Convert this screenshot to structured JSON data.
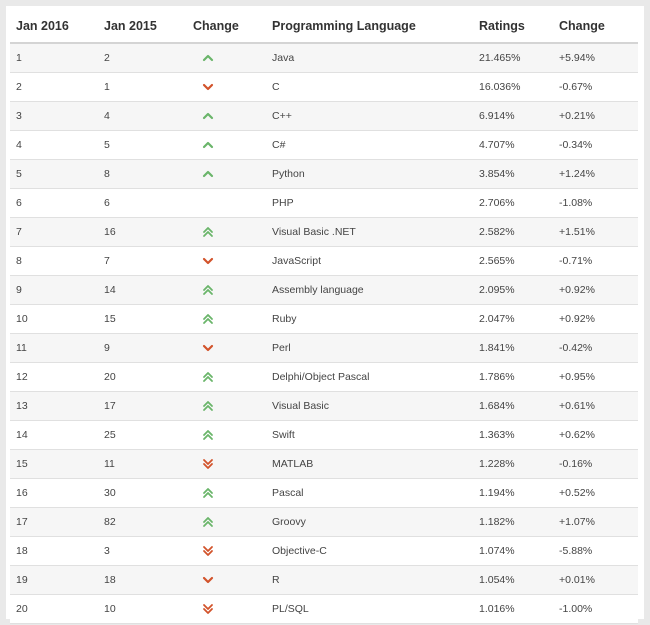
{
  "headers": [
    "Jan 2016",
    "Jan 2015",
    "Change",
    "Programming Language",
    "Ratings",
    "Change"
  ],
  "colors": {
    "up": "#6ab56a",
    "down": "#d2532b"
  },
  "rows": [
    {
      "jan2016": "1",
      "jan2015": "2",
      "trend": "up",
      "language": "Java",
      "rating": "21.465%",
      "change": "+5.94%"
    },
    {
      "jan2016": "2",
      "jan2015": "1",
      "trend": "down",
      "language": "C",
      "rating": "16.036%",
      "change": "-0.67%"
    },
    {
      "jan2016": "3",
      "jan2015": "4",
      "trend": "up",
      "language": "C++",
      "rating": "6.914%",
      "change": "+0.21%"
    },
    {
      "jan2016": "4",
      "jan2015": "5",
      "trend": "up",
      "language": "C#",
      "rating": "4.707%",
      "change": "-0.34%"
    },
    {
      "jan2016": "5",
      "jan2015": "8",
      "trend": "up",
      "language": "Python",
      "rating": "3.854%",
      "change": "+1.24%"
    },
    {
      "jan2016": "6",
      "jan2015": "6",
      "trend": "none",
      "language": "PHP",
      "rating": "2.706%",
      "change": "-1.08%"
    },
    {
      "jan2016": "7",
      "jan2015": "16",
      "trend": "double-up",
      "language": "Visual Basic .NET",
      "rating": "2.582%",
      "change": "+1.51%"
    },
    {
      "jan2016": "8",
      "jan2015": "7",
      "trend": "down",
      "language": "JavaScript",
      "rating": "2.565%",
      "change": "-0.71%"
    },
    {
      "jan2016": "9",
      "jan2015": "14",
      "trend": "double-up",
      "language": "Assembly language",
      "rating": "2.095%",
      "change": "+0.92%"
    },
    {
      "jan2016": "10",
      "jan2015": "15",
      "trend": "double-up",
      "language": "Ruby",
      "rating": "2.047%",
      "change": "+0.92%"
    },
    {
      "jan2016": "11",
      "jan2015": "9",
      "trend": "down",
      "language": "Perl",
      "rating": "1.841%",
      "change": "-0.42%"
    },
    {
      "jan2016": "12",
      "jan2015": "20",
      "trend": "double-up",
      "language": "Delphi/Object Pascal",
      "rating": "1.786%",
      "change": "+0.95%"
    },
    {
      "jan2016": "13",
      "jan2015": "17",
      "trend": "double-up",
      "language": "Visual Basic",
      "rating": "1.684%",
      "change": "+0.61%"
    },
    {
      "jan2016": "14",
      "jan2015": "25",
      "trend": "double-up",
      "language": "Swift",
      "rating": "1.363%",
      "change": "+0.62%"
    },
    {
      "jan2016": "15",
      "jan2015": "11",
      "trend": "double-down",
      "language": "MATLAB",
      "rating": "1.228%",
      "change": "-0.16%"
    },
    {
      "jan2016": "16",
      "jan2015": "30",
      "trend": "double-up",
      "language": "Pascal",
      "rating": "1.194%",
      "change": "+0.52%"
    },
    {
      "jan2016": "17",
      "jan2015": "82",
      "trend": "double-up",
      "language": "Groovy",
      "rating": "1.182%",
      "change": "+1.07%"
    },
    {
      "jan2016": "18",
      "jan2015": "3",
      "trend": "double-down",
      "language": "Objective-C",
      "rating": "1.074%",
      "change": "-5.88%"
    },
    {
      "jan2016": "19",
      "jan2015": "18",
      "trend": "down",
      "language": "R",
      "rating": "1.054%",
      "change": "+0.01%"
    },
    {
      "jan2016": "20",
      "jan2015": "10",
      "trend": "double-down",
      "language": "PL/SQL",
      "rating": "1.016%",
      "change": "-1.00%"
    }
  ]
}
